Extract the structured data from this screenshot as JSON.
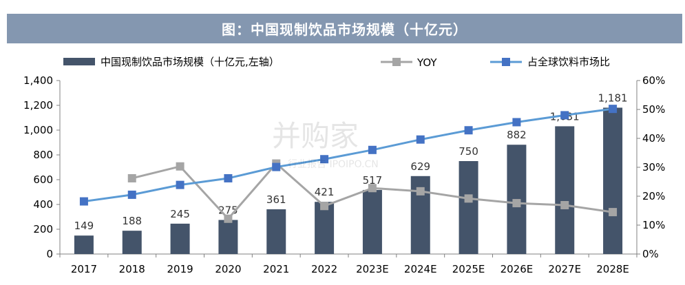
{
  "chart_data": {
    "type": "bar-line-combo",
    "title": "图：中国现制饮品市场规模（十亿元）",
    "categories": [
      "2017",
      "2018",
      "2019",
      "2020",
      "2021",
      "2022",
      "2023E",
      "2024E",
      "2025E",
      "2026E",
      "2027E",
      "2028E"
    ],
    "y_left": {
      "range": [
        0,
        1400
      ],
      "ticks": [
        0,
        200,
        400,
        600,
        800,
        1000,
        1200,
        1400
      ],
      "tick_labels": [
        "0",
        "200",
        "400",
        "600",
        "800",
        "1,000",
        "1,200",
        "1,400"
      ]
    },
    "y_right": {
      "range": [
        0,
        60
      ],
      "ticks": [
        0,
        10,
        20,
        30,
        40,
        50,
        60
      ],
      "tick_labels": [
        "0%",
        "10%",
        "20%",
        "30%",
        "40%",
        "50%",
        "60%"
      ]
    },
    "series": [
      {
        "name": "中国现制饮品市场规模（十亿元,左轴）",
        "kind": "bar",
        "axis": "left",
        "color": "#44546a",
        "values": [
          149,
          188,
          245,
          275,
          361,
          421,
          517,
          629,
          750,
          882,
          1031,
          1181
        ],
        "labels": [
          "149",
          "188",
          "245",
          "275",
          "361",
          "421",
          "517",
          "629",
          "750",
          "882",
          "1,031",
          "1,181"
        ]
      },
      {
        "name": "YOY",
        "kind": "line",
        "axis": "right",
        "color": "#a5a5a5",
        "values": [
          null,
          26.2,
          30.3,
          12.2,
          31.3,
          16.6,
          22.8,
          21.7,
          19.2,
          17.6,
          16.9,
          14.5
        ]
      },
      {
        "name": "占全球饮料市场比",
        "kind": "line",
        "axis": "right",
        "color": "#5b9bd5",
        "marker_color": "#4472c4",
        "values": [
          18.2,
          20.5,
          23.9,
          26.2,
          30.1,
          32.8,
          36.0,
          39.6,
          42.8,
          45.6,
          48.0,
          50.2
        ]
      }
    ],
    "legend_position": "top",
    "grid": false
  },
  "watermark": {
    "main": "并购家",
    "sub": "行业报告 IPOIPO.CN"
  }
}
